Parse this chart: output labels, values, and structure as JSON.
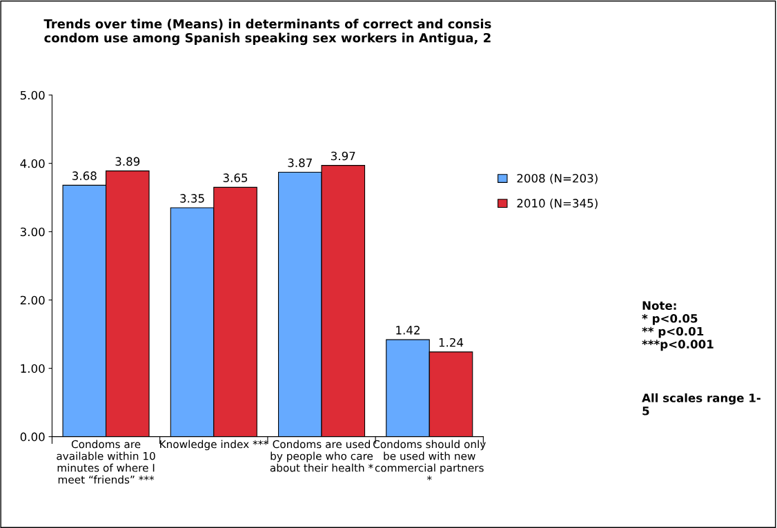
{
  "chart_data": {
    "type": "bar",
    "title": "Trends over time (Means) in determinants of correct and consis\ncondom use among Spanish speaking sex workers in Antigua, 2",
    "categories": [
      "Condoms are\navailable within 10\nminutes of where I\nmeet “friends” ***",
      "Knowledge index ***",
      "Condoms are used\nby people who care\nabout their health *",
      "Condoms should only\nbe used with new\ncommercial partners\n*"
    ],
    "series": [
      {
        "name": "2008 (N=203)",
        "color": "#66aaff",
        "values": [
          3.68,
          3.35,
          3.87,
          1.42
        ]
      },
      {
        "name": "2010 (N=345)",
        "color": "#dd2c36",
        "values": [
          3.89,
          3.65,
          3.97,
          1.24
        ]
      }
    ],
    "ylim": [
      0,
      5
    ],
    "yticks": [
      {
        "value": 0,
        "label": "0.00"
      },
      {
        "value": 1,
        "label": "1.00"
      },
      {
        "value": 2,
        "label": "2.00"
      },
      {
        "value": 3,
        "label": "3.00"
      },
      {
        "value": 4,
        "label": "4.00"
      },
      {
        "value": 5,
        "label": "5.00"
      }
    ],
    "data_labels": true,
    "grid": false,
    "legend": "right",
    "annotations": [
      "Note:\n* p<0.05\n** p<0.01\n***p<0.001",
      "All scales range 1-\n5"
    ]
  }
}
